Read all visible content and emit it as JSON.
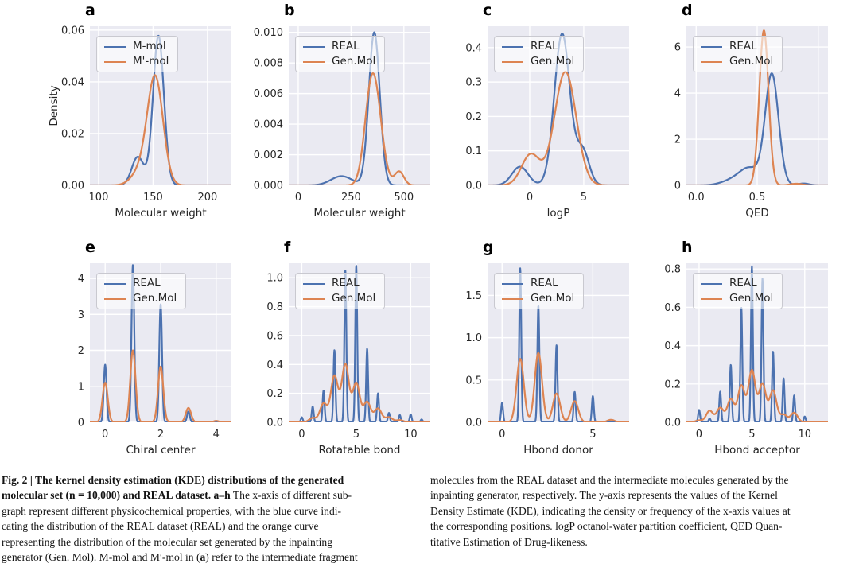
{
  "style": {
    "plot_bg": "#EAEAF2",
    "grid_color": "#FFFFFF",
    "tick_color": "#262626",
    "blue": "#4C72B0",
    "orange": "#DD8452"
  },
  "chart_data": [
    {
      "type": "line",
      "panel_label": "a",
      "xlabel": "Molecular weight",
      "ylabel": "Density",
      "legend_position": "upper left",
      "xlim": [
        92,
        222
      ],
      "ylim": [
        0,
        0.0615
      ],
      "xticks": {
        "vals": [
          100,
          150,
          200
        ],
        "labels": [
          "100",
          "150",
          "200"
        ]
      },
      "yticks": {
        "vals": [
          0.0,
          0.02,
          0.04,
          0.06
        ],
        "labels": [
          "0.00",
          "0.02",
          "0.04",
          "0.06"
        ]
      },
      "series": [
        {
          "name": "M-mol",
          "color": "#4C72B0",
          "components": [
            [
              155,
              0.0578,
              5.0
            ],
            [
              136,
              0.011,
              5.5
            ]
          ]
        },
        {
          "name": "M'-mol",
          "color": "#DD8452",
          "components": [
            [
              152,
              0.0415,
              7.2
            ],
            [
              138,
              0.005,
              8.0
            ]
          ]
        }
      ]
    },
    {
      "type": "line",
      "panel_label": "b",
      "xlabel": "Molecular weight",
      "legend_position": "upper left",
      "xlim": [
        -45,
        625
      ],
      "ylim": [
        0,
        0.0104
      ],
      "xticks": {
        "vals": [
          0,
          250,
          500
        ],
        "labels": [
          "0",
          "250",
          "500"
        ]
      },
      "yticks": {
        "vals": [
          0.0,
          0.002,
          0.004,
          0.006,
          0.008,
          0.01
        ],
        "labels": [
          "0.000",
          "0.002",
          "0.004",
          "0.006",
          "0.008",
          "0.010"
        ]
      },
      "series": [
        {
          "name": "REAL",
          "color": "#4C72B0",
          "components": [
            [
              360,
              0.01,
              26
            ],
            [
              205,
              0.0006,
              50
            ]
          ]
        },
        {
          "name": "Gen.Mol",
          "color": "#DD8452",
          "components": [
            [
              338,
              0.0036,
              30
            ],
            [
              368,
              0.0046,
              33
            ],
            [
              478,
              0.0009,
              22
            ]
          ]
        }
      ]
    },
    {
      "type": "line",
      "panel_label": "c",
      "xlabel": "logP",
      "legend_position": "upper left",
      "xlim": [
        -3.9,
        9.2
      ],
      "ylim": [
        0,
        0.462
      ],
      "xticks": {
        "vals": [
          0,
          5
        ],
        "labels": [
          "0",
          "5"
        ]
      },
      "yticks": {
        "vals": [
          0.0,
          0.1,
          0.2,
          0.3,
          0.4
        ],
        "labels": [
          "0.0",
          "0.1",
          "0.2",
          "0.3",
          "0.4"
        ]
      },
      "series": [
        {
          "name": "REAL",
          "color": "#4C72B0",
          "components": [
            [
              -0.9,
              0.054,
              0.75
            ],
            [
              3.0,
              0.44,
              0.72
            ],
            [
              4.9,
              0.1,
              0.6
            ]
          ]
        },
        {
          "name": "Gen.Mol",
          "color": "#DD8452",
          "components": [
            [
              0.1,
              0.09,
              0.85
            ],
            [
              3.3,
              0.33,
              1.0
            ]
          ]
        }
      ]
    },
    {
      "type": "line",
      "panel_label": "d",
      "xlabel": "QED",
      "legend_position": "upper left",
      "xlim": [
        -0.08,
        1.08
      ],
      "ylim": [
        0,
        6.9
      ],
      "xticks": {
        "vals": [
          0.0,
          0.5,
          1.0
        ],
        "labels": [
          "0.0",
          "0.5",
          ""
        ]
      },
      "yticks": {
        "vals": [
          0,
          2,
          4,
          6
        ],
        "labels": [
          "0",
          "2",
          "4",
          "6"
        ]
      },
      "series": [
        {
          "name": "REAL",
          "color": "#4C72B0",
          "components": [
            [
              0.62,
              4.8,
              0.055
            ],
            [
              0.44,
              0.7,
              0.08
            ],
            [
              0.3,
              0.22,
              0.09
            ],
            [
              0.88,
              0.08,
              0.045
            ]
          ]
        },
        {
          "name": "Gen.Mol",
          "color": "#DD8452",
          "components": [
            [
              0.555,
              6.72,
              0.038
            ],
            [
              0.82,
              0.07,
              0.05
            ]
          ]
        }
      ]
    },
    {
      "type": "line",
      "panel_label": "e",
      "xlabel": "Chiral center",
      "legend_position": "upper left",
      "xlim": [
        -0.55,
        4.55
      ],
      "ylim": [
        0,
        4.42
      ],
      "xticks": {
        "vals": [
          0,
          2,
          4
        ],
        "labels": [
          "0",
          "2",
          "4"
        ]
      },
      "yticks": {
        "vals": [
          0,
          1,
          2,
          3,
          4
        ],
        "labels": [
          "0",
          "1",
          "2",
          "3",
          "4"
        ]
      },
      "series": [
        {
          "name": "REAL",
          "color": "#4C72B0",
          "components": [
            [
              0,
              1.6,
              0.05
            ],
            [
              1,
              4.38,
              0.05
            ],
            [
              2,
              3.28,
              0.05
            ],
            [
              3,
              0.3,
              0.05
            ]
          ]
        },
        {
          "name": "Gen.Mol",
          "color": "#DD8452",
          "components": [
            [
              0,
              1.1,
              0.095
            ],
            [
              1,
              2.0,
              0.095
            ],
            [
              2,
              1.55,
              0.095
            ],
            [
              3,
              0.4,
              0.095
            ],
            [
              4,
              0.04,
              0.095
            ]
          ]
        }
      ]
    },
    {
      "type": "line",
      "panel_label": "f",
      "xlabel": "Rotatable bond",
      "legend_position": "upper left",
      "xlim": [
        -1.2,
        11.8
      ],
      "ylim": [
        0,
        1.1
      ],
      "xticks": {
        "vals": [
          0,
          5,
          10
        ],
        "labels": [
          "0",
          "5",
          "10"
        ]
      },
      "yticks": {
        "vals": [
          0.0,
          0.2,
          0.4,
          0.6,
          0.8,
          1.0
        ],
        "labels": [
          "0.0",
          "0.2",
          "0.4",
          "0.6",
          "0.8",
          "1.0"
        ]
      },
      "series": [
        {
          "name": "REAL",
          "color": "#4C72B0",
          "components": [
            [
              0,
              0.035,
              0.09
            ],
            [
              1,
              0.11,
              0.09
            ],
            [
              2,
              0.22,
              0.09
            ],
            [
              3,
              0.5,
              0.09
            ],
            [
              4,
              1.05,
              0.09
            ],
            [
              5,
              1.085,
              0.09
            ],
            [
              6,
              0.51,
              0.09
            ],
            [
              7,
              0.2,
              0.09
            ],
            [
              8,
              0.065,
              0.09
            ],
            [
              9,
              0.05,
              0.09
            ],
            [
              10,
              0.055,
              0.09
            ],
            [
              11,
              0.02,
              0.09
            ]
          ]
        },
        {
          "name": "Gen.Mol",
          "color": "#DD8452",
          "components": [
            [
              1,
              0.03,
              0.33
            ],
            [
              2,
              0.13,
              0.33
            ],
            [
              3,
              0.32,
              0.33
            ],
            [
              4,
              0.4,
              0.33
            ],
            [
              5,
              0.27,
              0.33
            ],
            [
              6,
              0.14,
              0.33
            ],
            [
              7,
              0.095,
              0.33
            ],
            [
              8,
              0.035,
              0.33
            ],
            [
              9,
              0.015,
              0.33
            ]
          ]
        }
      ]
    },
    {
      "type": "line",
      "panel_label": "g",
      "xlabel": "Hbond donor",
      "legend_position": "upper left",
      "xlim": [
        -0.8,
        7.0
      ],
      "ylim": [
        0,
        1.88
      ],
      "xticks": {
        "vals": [
          0,
          5
        ],
        "labels": [
          "0",
          "5"
        ]
      },
      "yticks": {
        "vals": [
          0.0,
          0.5,
          1.0,
          1.5
        ],
        "labels": [
          "0.0",
          "0.5",
          "1.0",
          "1.5"
        ]
      },
      "series": [
        {
          "name": "REAL",
          "color": "#4C72B0",
          "components": [
            [
              0,
              0.23,
              0.055
            ],
            [
              1,
              1.82,
              0.055
            ],
            [
              2,
              1.38,
              0.055
            ],
            [
              3,
              0.91,
              0.055
            ],
            [
              4,
              0.36,
              0.055
            ],
            [
              5,
              0.31,
              0.055
            ]
          ]
        },
        {
          "name": "Gen.Mol",
          "color": "#DD8452",
          "components": [
            [
              1,
              0.75,
              0.2
            ],
            [
              2,
              0.82,
              0.2
            ],
            [
              3,
              0.34,
              0.2
            ],
            [
              4,
              0.25,
              0.2
            ],
            [
              6,
              0.03,
              0.2
            ]
          ]
        }
      ]
    },
    {
      "type": "line",
      "panel_label": "h",
      "xlabel": "Hbond acceptor",
      "legend_position": "upper left",
      "xlim": [
        -1.2,
        12.2
      ],
      "ylim": [
        0,
        0.83
      ],
      "xticks": {
        "vals": [
          0,
          5,
          10
        ],
        "labels": [
          "0",
          "5",
          "10"
        ]
      },
      "yticks": {
        "vals": [
          0.0,
          0.2,
          0.4,
          0.6,
          0.8
        ],
        "labels": [
          "0.0",
          "0.2",
          "0.4",
          "0.6",
          "0.8"
        ]
      },
      "series": [
        {
          "name": "REAL",
          "color": "#4C72B0",
          "components": [
            [
              0,
              0.065,
              0.09
            ],
            [
              1,
              0.02,
              0.09
            ],
            [
              2,
              0.16,
              0.09
            ],
            [
              3,
              0.3,
              0.09
            ],
            [
              4,
              0.6,
              0.09
            ],
            [
              5,
              0.815,
              0.09
            ],
            [
              6,
              0.75,
              0.09
            ],
            [
              7,
              0.37,
              0.09
            ],
            [
              8,
              0.23,
              0.09
            ],
            [
              9,
              0.14,
              0.09
            ],
            [
              10,
              0.03,
              0.09
            ]
          ]
        },
        {
          "name": "Gen.Mol",
          "color": "#DD8452",
          "components": [
            [
              0,
              0.01,
              0.33
            ],
            [
              1,
              0.06,
              0.33
            ],
            [
              2,
              0.075,
              0.33
            ],
            [
              3,
              0.12,
              0.33
            ],
            [
              4,
              0.19,
              0.33
            ],
            [
              5,
              0.27,
              0.33
            ],
            [
              6,
              0.2,
              0.33
            ],
            [
              7,
              0.165,
              0.33
            ],
            [
              8,
              0.04,
              0.33
            ],
            [
              9,
              0.05,
              0.33
            ]
          ]
        }
      ]
    }
  ],
  "caption": {
    "left_lines": [
      [
        {
          "t": "Fig. 2 | The kernel density estimation (KDE) distributions of the generated",
          "b": true
        }
      ],
      [
        {
          "t": "molecular set (n = 10,000) and REAL dataset. ",
          "b": true
        },
        {
          "t": "a–h",
          "b": true
        },
        {
          "t": " The x-axis of different sub-",
          "b": false
        }
      ],
      [
        {
          "t": "graph represent different physicochemical properties, with the blue curve indi-",
          "b": false
        }
      ],
      [
        {
          "t": "cating the distribution of the REAL dataset (REAL) and the orange curve",
          "b": false
        }
      ],
      [
        {
          "t": "representing the distribution of the molecular set generated by the inpainting",
          "b": false
        }
      ],
      [
        {
          "t": "generator (Gen. Mol). M-mol and M′-mol in (",
          "b": false
        },
        {
          "t": "a",
          "b": true
        },
        {
          "t": ") refer to the intermediate fragment",
          "b": false
        }
      ]
    ],
    "right_lines": [
      [
        {
          "t": "molecules from the REAL dataset and the intermediate molecules generated by the",
          "b": false
        }
      ],
      [
        {
          "t": "inpainting generator, respectively. The y-axis represents the values of the Kernel",
          "b": false
        }
      ],
      [
        {
          "t": "Density Estimate (KDE), indicating the density or frequency of the x-axis values at",
          "b": false
        }
      ],
      [
        {
          "t": "the corresponding positions. logP octanol-water partition coefficient, QED Quan-",
          "b": false
        }
      ],
      [
        {
          "t": "titative Estimation of Drug-likeness.",
          "b": false
        }
      ]
    ]
  }
}
